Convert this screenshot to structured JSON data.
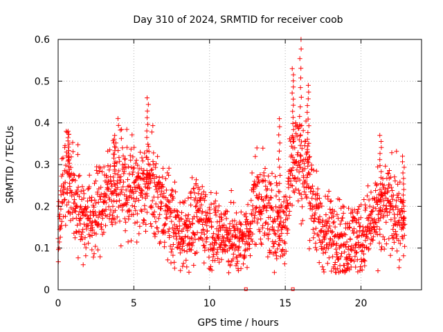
{
  "chart_data": {
    "type": "scatter",
    "title": "Day 310 of 2024, SRMTID for receiver coob",
    "xlabel": "GPS time / hours",
    "ylabel": "SRMTID / TECUs",
    "xlim": [
      0,
      24
    ],
    "ylim": [
      0,
      0.6
    ],
    "xticks": [
      0,
      5,
      10,
      15,
      20
    ],
    "xtick_labels": [
      "0",
      "5",
      "10",
      "15",
      "20"
    ],
    "yticks": [
      0,
      0.1,
      0.2,
      0.3,
      0.4,
      0.5,
      0.6
    ],
    "ytick_labels": [
      "0",
      "0.1",
      "0.2",
      "0.3",
      "0.4",
      "0.5",
      "0.6"
    ],
    "grid": true,
    "marker": "+",
    "marker_color": "#ff0000",
    "series": [
      {
        "name": "SRMTID",
        "trend": [
          [
            0.0,
            0.1
          ],
          [
            0.2,
            0.22
          ],
          [
            0.5,
            0.27
          ],
          [
            0.7,
            0.28
          ],
          [
            1.0,
            0.21
          ],
          [
            1.5,
            0.19
          ],
          [
            2.0,
            0.17
          ],
          [
            2.5,
            0.18
          ],
          [
            3.0,
            0.22
          ],
          [
            3.5,
            0.24
          ],
          [
            4.0,
            0.27
          ],
          [
            4.5,
            0.24
          ],
          [
            5.0,
            0.24
          ],
          [
            5.5,
            0.23
          ],
          [
            6.0,
            0.26
          ],
          [
            6.5,
            0.22
          ],
          [
            7.0,
            0.2
          ],
          [
            7.5,
            0.17
          ],
          [
            8.0,
            0.13
          ],
          [
            8.5,
            0.15
          ],
          [
            9.0,
            0.16
          ],
          [
            9.5,
            0.18
          ],
          [
            10.0,
            0.15
          ],
          [
            10.5,
            0.13
          ],
          [
            11.0,
            0.14
          ],
          [
            11.5,
            0.12
          ],
          [
            12.0,
            0.11
          ],
          [
            12.5,
            0.13
          ],
          [
            13.0,
            0.22
          ],
          [
            13.5,
            0.21
          ],
          [
            14.0,
            0.17
          ],
          [
            14.5,
            0.16
          ],
          [
            15.0,
            0.15
          ],
          [
            15.5,
            0.34
          ],
          [
            16.0,
            0.3
          ],
          [
            16.5,
            0.28
          ],
          [
            17.0,
            0.18
          ],
          [
            17.5,
            0.13
          ],
          [
            18.0,
            0.14
          ],
          [
            18.5,
            0.13
          ],
          [
            19.0,
            0.11
          ],
          [
            19.5,
            0.13
          ],
          [
            20.0,
            0.12
          ],
          [
            20.5,
            0.15
          ],
          [
            21.0,
            0.17
          ],
          [
            21.5,
            0.19
          ],
          [
            22.0,
            0.21
          ],
          [
            22.5,
            0.17
          ],
          [
            22.9,
            0.14
          ]
        ],
        "spikes": [
          [
            0.7,
            0.38
          ],
          [
            3.7,
            0.37
          ],
          [
            5.9,
            0.46
          ],
          [
            14.6,
            0.41
          ],
          [
            15.5,
            0.53
          ],
          [
            16.0,
            0.6
          ],
          [
            16.5,
            0.49
          ],
          [
            21.3,
            0.37
          ],
          [
            22.8,
            0.32
          ]
        ]
      }
    ],
    "zero_markers_x": [
      12.4,
      15.5
    ]
  }
}
